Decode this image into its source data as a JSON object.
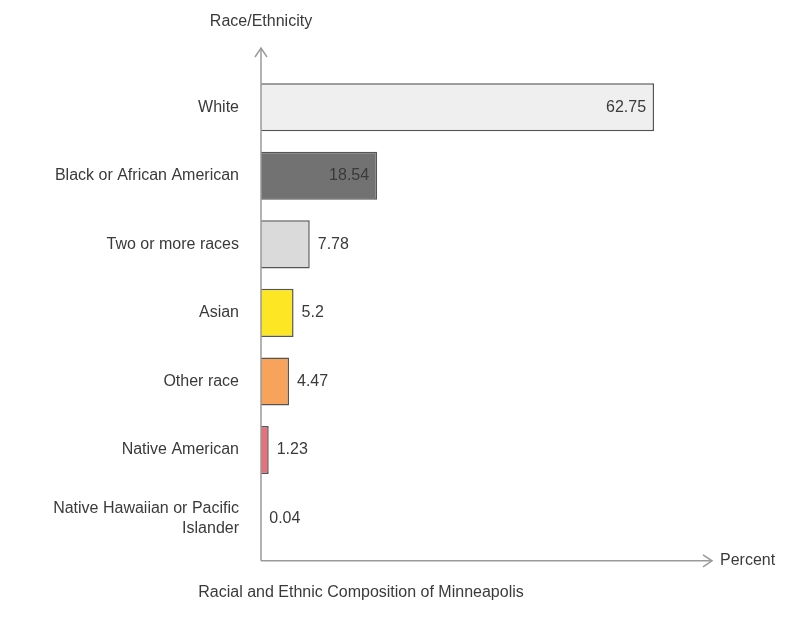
{
  "chart_data": {
    "type": "bar",
    "orientation": "horizontal",
    "title": "Racial and Ethnic Composition of Minneapolis",
    "x_label": "Percent",
    "y_label": "Race/Ethnicity",
    "categories": [
      "White",
      "Black or African American",
      "Two or more races",
      "Asian",
      "Other race",
      "Native American",
      "Native Hawaiian or Pacific Islander"
    ],
    "values": [
      62.75,
      18.54,
      7.78,
      5.2,
      4.47,
      1.23,
      0.04
    ],
    "colors": [
      "#efefef",
      "#727272",
      "#dadada",
      "#fde725",
      "#f7a35c",
      "#e8707a",
      "#9ecae1"
    ],
    "xlim": [
      0,
      72
    ],
    "grid": false,
    "data_labels": true,
    "tick_labels": "y"
  }
}
